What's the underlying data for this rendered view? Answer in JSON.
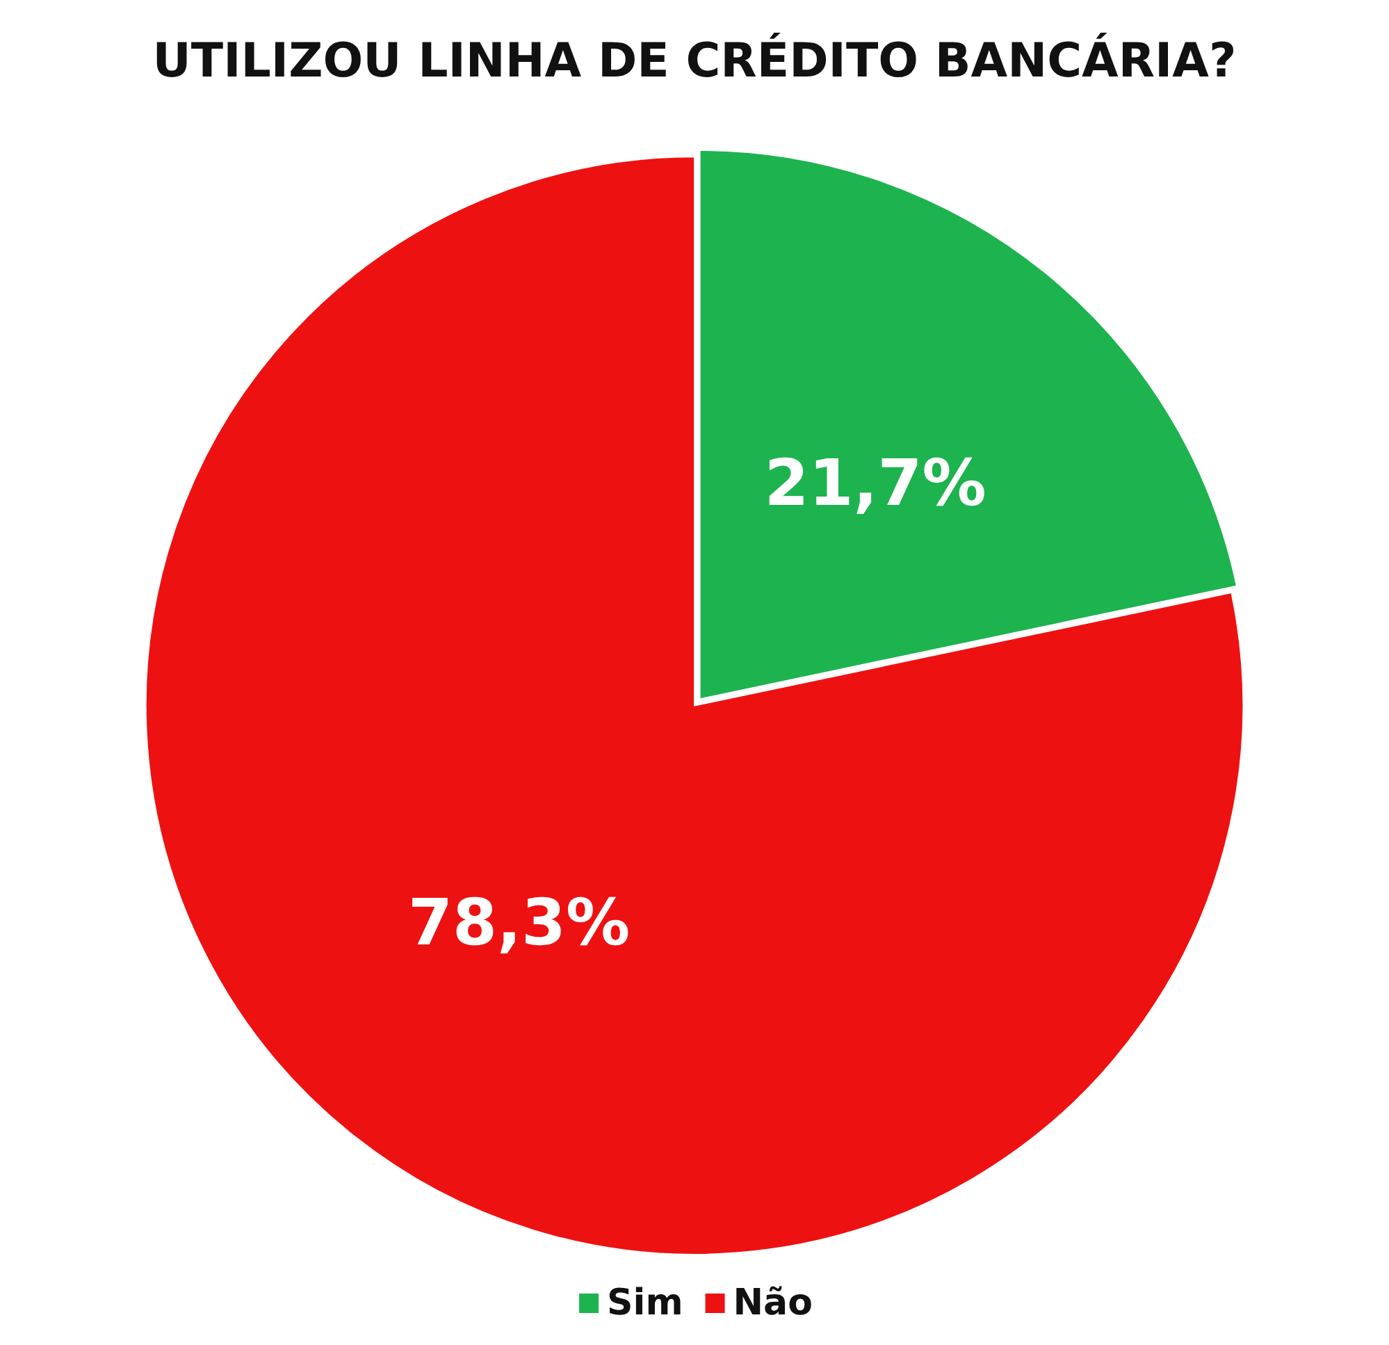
{
  "chart_data": {
    "type": "pie",
    "title": "UTILIZOU LINHA DE CRÉDITO BANCÁRIA?",
    "categories": [
      "Sim",
      "Não"
    ],
    "values": [
      21.7,
      78.3
    ],
    "colors": [
      "#1db34f",
      "#ee1111"
    ],
    "value_labels": [
      "21,7%",
      "78,3%"
    ],
    "legend": "bottom"
  }
}
